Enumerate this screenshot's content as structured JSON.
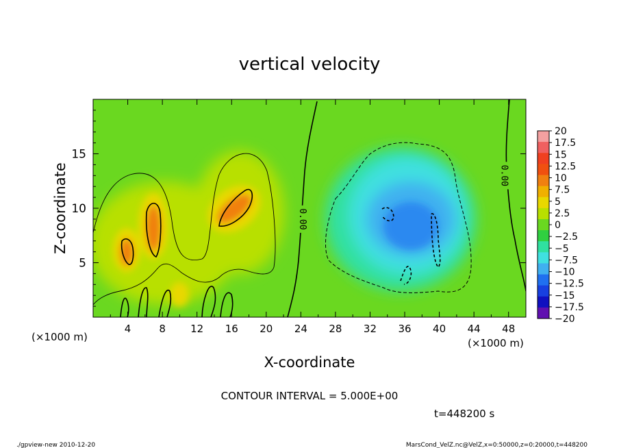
{
  "chart_data": {
    "type": "heatmap",
    "title": "vertical velocity",
    "xlabel": "X-coordinate",
    "ylabel": "Z-coordinate",
    "x_unit_left": "(×1000 m)",
    "x_unit_right": "(×1000 m)",
    "xlim": [
      0,
      50
    ],
    "ylim": [
      0,
      20
    ],
    "x_ticks": [
      "4",
      "8",
      "12",
      "16",
      "20",
      "24",
      "28",
      "32",
      "36",
      "40",
      "44",
      "48"
    ],
    "x_tick_values": [
      4,
      8,
      12,
      16,
      20,
      24,
      28,
      32,
      36,
      40,
      44,
      48
    ],
    "y_ticks": [
      "5",
      "10",
      "15"
    ],
    "y_tick_values": [
      5,
      10,
      15
    ],
    "contour_interval_text": "CONTOUR INTERVAL = 5.000E+00",
    "time_text": "t=448200 s",
    "contour_labels": [
      {
        "text": "0.00",
        "x": 24.2,
        "z": 9.0
      },
      {
        "text": "0.00",
        "x": 47.5,
        "z": 13.0
      }
    ],
    "colorbar": {
      "labels": [
        "20",
        "17.5",
        "15",
        "12.5",
        "10",
        "7.5",
        "5",
        "2.5",
        "0",
        "−2.5",
        "−5",
        "−7.5",
        "−10",
        "−12.5",
        "−15",
        "−17.5",
        "−20"
      ],
      "values": [
        20,
        17.5,
        15,
        12.5,
        10,
        7.5,
        5,
        2.5,
        0,
        -2.5,
        -5,
        -7.5,
        -10,
        -12.5,
        -15,
        -17.5,
        -20
      ],
      "colors": [
        "#f4a0a0",
        "#f06060",
        "#f04020",
        "#f05010",
        "#f08010",
        "#f0b000",
        "#e8d800",
        "#b8e000",
        "#6ad820",
        "#30d040",
        "#30e0a0",
        "#40e0e0",
        "#40b0f0",
        "#2070f0",
        "#1840e0",
        "#1010c0",
        "#6010b0"
      ]
    },
    "features": [
      {
        "kind": "updraft",
        "x": 3.8,
        "z": 6.5,
        "peak": 12
      },
      {
        "kind": "updraft",
        "x": 6.8,
        "z": 8.5,
        "peak": 13
      },
      {
        "kind": "updraft",
        "x": 16.5,
        "z": 10.5,
        "peak": 12
      },
      {
        "kind": "downdraft",
        "x": 36,
        "z": 9,
        "peak": -9
      }
    ]
  },
  "footer": {
    "left": "./gpview-new 2010-12-20",
    "right": "MarsCond_VelZ.nc@VelZ,x=0:50000,z=0:20000,t=448200"
  }
}
